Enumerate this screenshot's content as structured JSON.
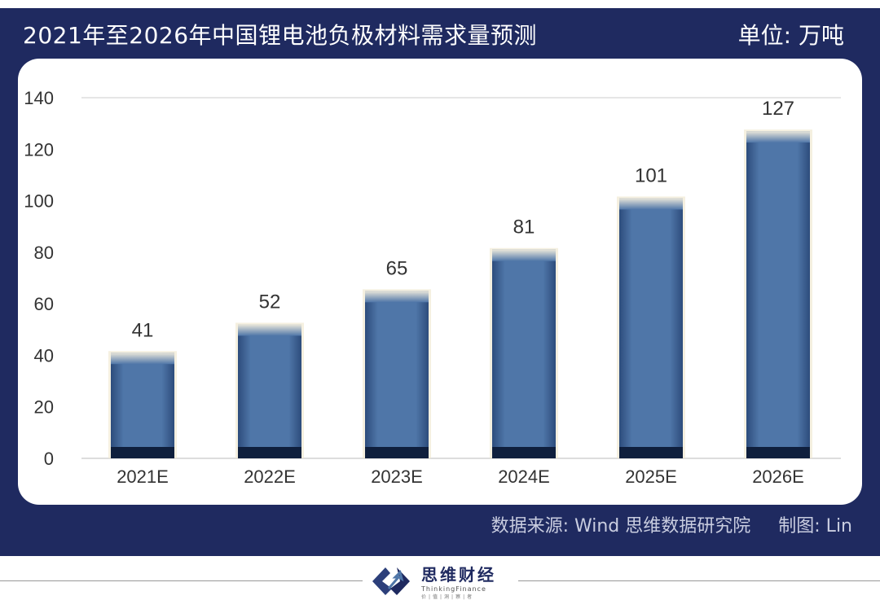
{
  "header": {
    "title": "2021年至2026年中国锂电池负极材料需求量预测",
    "unit": "单位: 万吨"
  },
  "footer": {
    "source": "数据来源: Wind  思维数据研究院",
    "credit": "制图: Lin"
  },
  "logo": {
    "name": "思维财经",
    "sub": "ThinkingFinance",
    "tagline": "价|值|洞|察|者"
  },
  "colors": {
    "frame": "#1f2a60",
    "bar": "#4f76a8",
    "bar_base": "#0f1f3d"
  },
  "chart_data": {
    "type": "bar",
    "title": "2021年至2026年中国锂电池负极材料需求量预测",
    "ylabel": "单位: 万吨",
    "categories": [
      "2021E",
      "2022E",
      "2023E",
      "2024E",
      "2025E",
      "2026E"
    ],
    "values": [
      41,
      52,
      65,
      81,
      101,
      127
    ],
    "ylim": [
      0,
      140
    ],
    "yticks": [
      0,
      20,
      40,
      60,
      80,
      100,
      120,
      140
    ],
    "grid": false
  }
}
